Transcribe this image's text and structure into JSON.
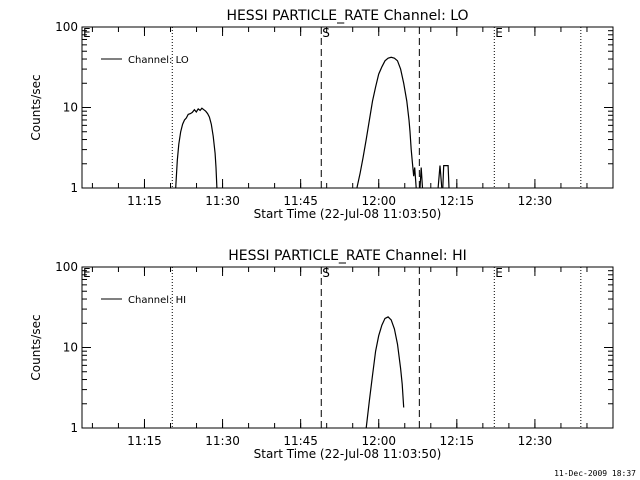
{
  "footer_timestamp": "11-Dec-2009 18:37",
  "chart_data": [
    {
      "type": "line",
      "title": "HESSI PARTICLE_RATE Channel: LO",
      "xlabel": "Start Time (22-Jul-08 11:03:50)",
      "ylabel": "Counts/sec",
      "yscale": "log",
      "ylim": [
        1,
        100
      ],
      "xlim": [
        11.05,
        12.75
      ],
      "yticks": [
        {
          "value": 1,
          "label": "1"
        },
        {
          "value": 10,
          "label": "10"
        },
        {
          "value": 100,
          "label": "100"
        }
      ],
      "xticks": [
        {
          "value": 11.25,
          "label": "11:15"
        },
        {
          "value": 11.5,
          "label": "11:30"
        },
        {
          "value": 11.75,
          "label": "11:45"
        },
        {
          "value": 12.0,
          "label": "12:00"
        },
        {
          "value": 12.25,
          "label": "12:15"
        },
        {
          "value": 12.5,
          "label": "12:30"
        }
      ],
      "legend": {
        "label": "Channel: LO",
        "position": "top-left"
      },
      "markers": [
        {
          "label": "E",
          "x": 11.05,
          "style": "dotted"
        },
        {
          "label": "",
          "x": 11.339,
          "style": "dotted"
        },
        {
          "label": "S",
          "x": 11.816,
          "style": "dashed"
        },
        {
          "label": "",
          "x": 12.13,
          "style": "dashed"
        },
        {
          "label": "E",
          "x": 12.37,
          "style": "dotted"
        },
        {
          "label": "",
          "x": 12.647,
          "style": "dotted"
        }
      ],
      "series": [
        {
          "name": "Channel: LO",
          "segments": [
            [
              [
                11.35,
                1
              ],
              [
                11.355,
                2.2
              ],
              [
                11.36,
                3.5
              ],
              [
                11.366,
                5
              ],
              [
                11.372,
                6.2
              ],
              [
                11.378,
                7
              ],
              [
                11.384,
                7.4
              ],
              [
                11.39,
                8.2
              ],
              [
                11.397,
                8.4
              ],
              [
                11.403,
                8.7
              ],
              [
                11.41,
                9.4
              ],
              [
                11.416,
                8.8
              ],
              [
                11.422,
                9.6
              ],
              [
                11.428,
                9.2
              ],
              [
                11.434,
                9.8
              ],
              [
                11.44,
                9.4
              ],
              [
                11.446,
                9
              ],
              [
                11.452,
                8.4
              ],
              [
                11.458,
                7.6
              ],
              [
                11.464,
                6.2
              ],
              [
                11.47,
                4.4
              ],
              [
                11.476,
                2.7
              ],
              [
                11.479,
                1.8
              ],
              [
                11.482,
                1
              ]
            ],
            [
              [
                11.93,
                1
              ],
              [
                11.94,
                1.5
              ],
              [
                11.95,
                2.4
              ],
              [
                11.96,
                4
              ],
              [
                11.97,
                7
              ],
              [
                11.98,
                12
              ],
              [
                11.99,
                18
              ],
              [
                12.0,
                26
              ],
              [
                12.01,
                32
              ],
              [
                12.02,
                38
              ],
              [
                12.03,
                41
              ],
              [
                12.04,
                42
              ],
              [
                12.05,
                41
              ],
              [
                12.06,
                38
              ],
              [
                12.07,
                30
              ],
              [
                12.08,
                20
              ],
              [
                12.09,
                12
              ],
              [
                12.097,
                7
              ],
              [
                12.1,
                5
              ],
              [
                12.104,
                3
              ],
              [
                12.108,
                2
              ],
              [
                12.112,
                1.4
              ],
              [
                12.115,
                1.8
              ],
              [
                12.12,
                1
              ]
            ],
            [
              [
                12.132,
                1
              ],
              [
                12.136,
                1.8
              ],
              [
                12.14,
                1
              ]
            ],
            [
              [
                12.19,
                1
              ],
              [
                12.196,
                1.9
              ],
              [
                12.202,
                1
              ]
            ],
            [
              [
                12.205,
                1
              ],
              [
                12.208,
                1.9
              ],
              [
                12.222,
                1.9
              ],
              [
                12.225,
                1
              ]
            ]
          ]
        }
      ]
    },
    {
      "type": "line",
      "title": "HESSI PARTICLE_RATE Channel: HI",
      "xlabel": "Start Time (22-Jul-08 11:03:50)",
      "ylabel": "Counts/sec",
      "yscale": "log",
      "ylim": [
        1,
        100
      ],
      "xlim": [
        11.05,
        12.75
      ],
      "yticks": [
        {
          "value": 1,
          "label": "1"
        },
        {
          "value": 10,
          "label": "10"
        },
        {
          "value": 100,
          "label": "100"
        }
      ],
      "xticks": [
        {
          "value": 11.25,
          "label": "11:15"
        },
        {
          "value": 11.5,
          "label": "11:30"
        },
        {
          "value": 11.75,
          "label": "11:45"
        },
        {
          "value": 12.0,
          "label": "12:00"
        },
        {
          "value": 12.25,
          "label": "12:15"
        },
        {
          "value": 12.5,
          "label": "12:30"
        }
      ],
      "legend": {
        "label": "Channel: HI",
        "position": "top-left"
      },
      "markers": [
        {
          "label": "E",
          "x": 11.05,
          "style": "dotted"
        },
        {
          "label": "",
          "x": 11.339,
          "style": "dotted"
        },
        {
          "label": "S",
          "x": 11.816,
          "style": "dashed"
        },
        {
          "label": "",
          "x": 12.13,
          "style": "dashed"
        },
        {
          "label": "E",
          "x": 12.37,
          "style": "dotted"
        },
        {
          "label": "",
          "x": 12.647,
          "style": "dotted"
        }
      ],
      "series": [
        {
          "name": "Channel: HI",
          "segments": [
            [
              [
                11.96,
                1
              ],
              [
                11.97,
                2.2
              ],
              [
                11.98,
                4.5
              ],
              [
                11.99,
                9
              ],
              [
                12.0,
                14
              ],
              [
                12.01,
                19
              ],
              [
                12.02,
                23
              ],
              [
                12.03,
                24
              ],
              [
                12.04,
                22
              ],
              [
                12.05,
                17
              ],
              [
                12.06,
                11
              ],
              [
                12.07,
                5.5
              ],
              [
                12.075,
                3.5
              ],
              [
                12.08,
                1.8
              ]
            ]
          ]
        }
      ]
    }
  ]
}
